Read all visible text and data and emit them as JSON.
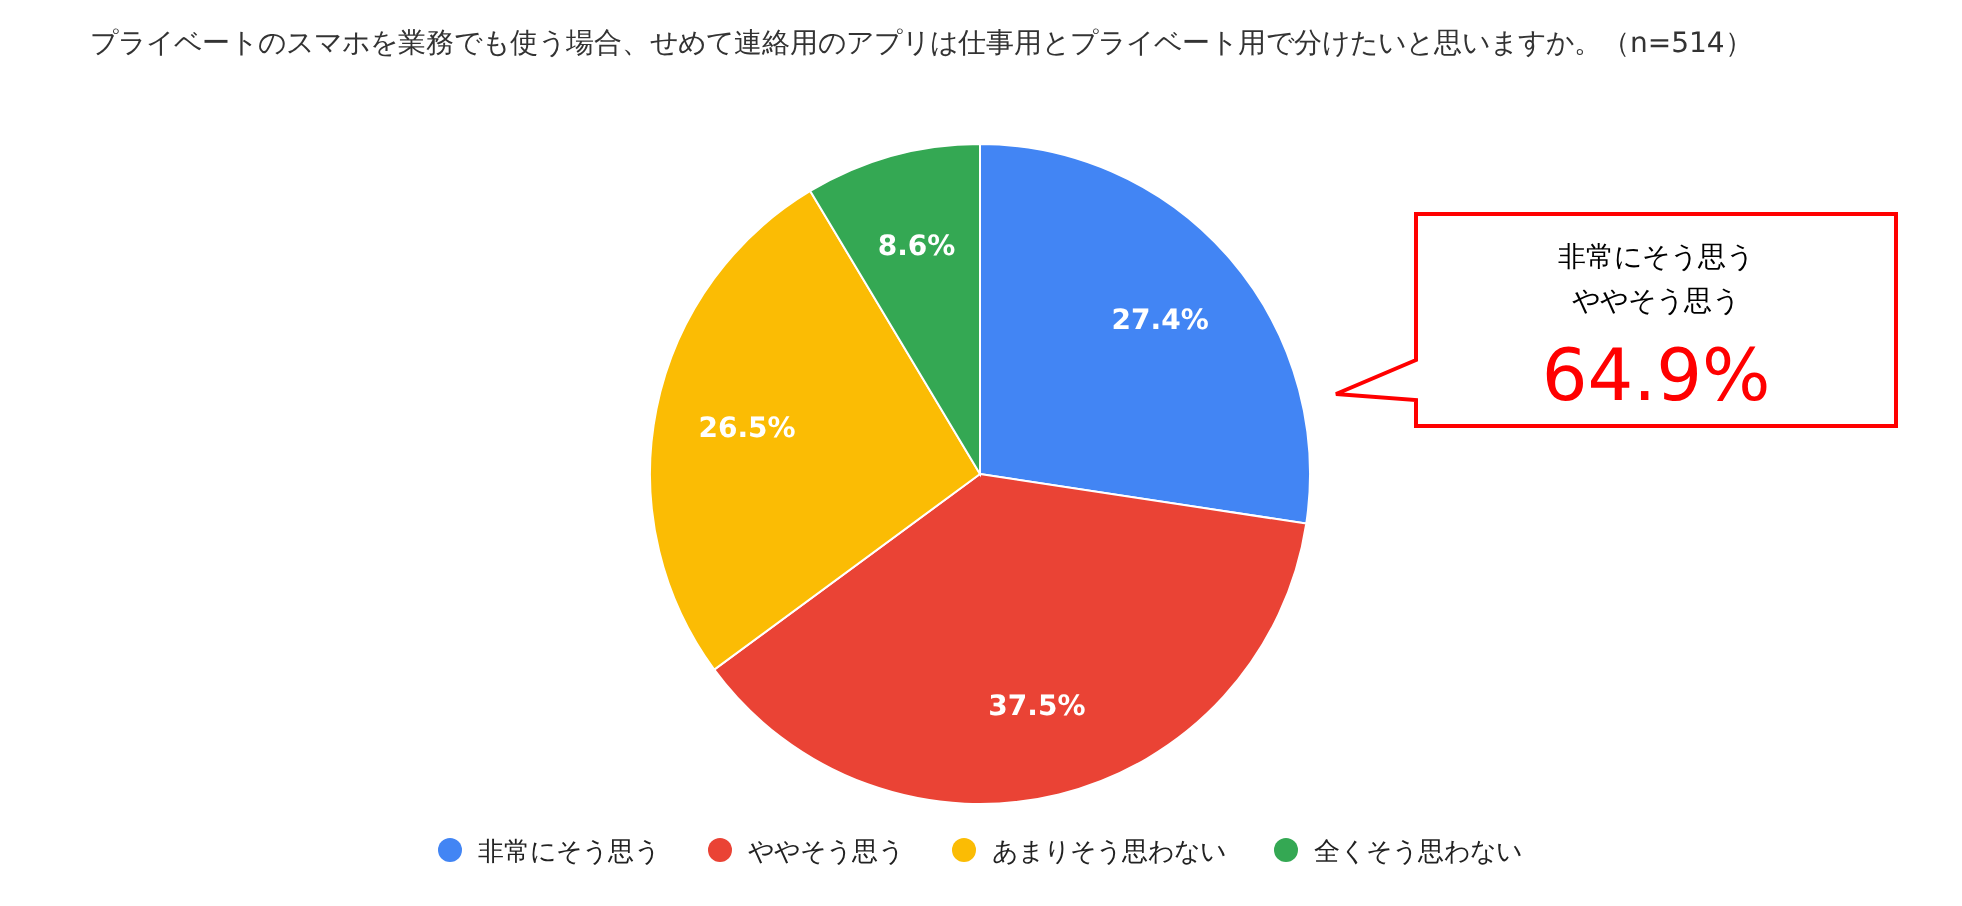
{
  "chart_data": {
    "type": "pie",
    "title": "プライベートのスマホを業務でも使う場合、せめて連絡用のアプリは仕事用とプライベート用で分けたいと思いますか。（n=514）",
    "categories": [
      "非常にそう思う",
      "ややそう思う",
      "あまりそう思わない",
      "全くそう思わない"
    ],
    "values": [
      27.4,
      37.5,
      26.5,
      8.6
    ],
    "colors": [
      "#4285f4",
      "#ea4335",
      "#fbbc04",
      "#34a853"
    ],
    "value_labels": [
      "27.4%",
      "37.5%",
      "26.5%",
      "8.6%"
    ],
    "legend": "bottom",
    "annotations": [
      "非常にそう思う",
      "ややそう思う",
      "64.9%"
    ]
  }
}
